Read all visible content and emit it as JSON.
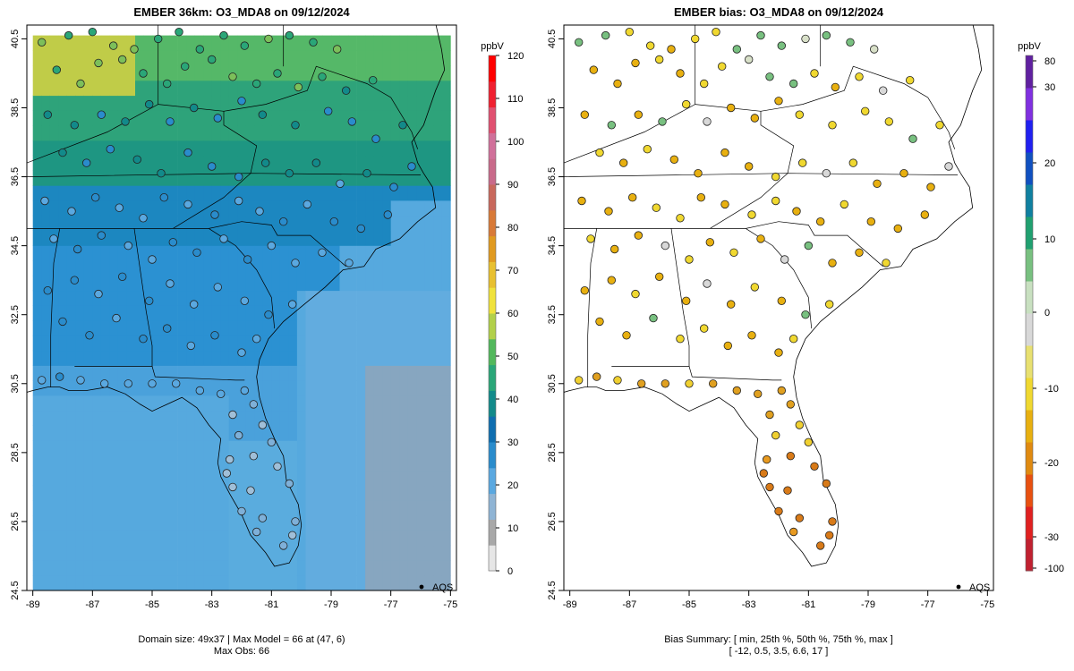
{
  "left": {
    "title": "EMBER 36km: O3_MDA8 on 09/12/2024",
    "unit": "ppbV",
    "legend_label": "AQS",
    "footer_line1": "Domain size: 49x37 | Max Model = 66 at (47, 6)",
    "footer_line2": "Max Obs: 66",
    "colorbar_ticks": [
      "0",
      "10",
      "20",
      "30",
      "40",
      "50",
      "60",
      "70",
      "80",
      "90",
      "100",
      "110",
      "120"
    ],
    "colorbar_colors": [
      "#e6e6e6",
      "#a8a8a8",
      "#8fb4d4",
      "#5aa8e0",
      "#2a8ccc",
      "#0f6eb0",
      "#128a8a",
      "#2aa678",
      "#52b85c",
      "#b2d04a",
      "#f0e23c",
      "#e8c030",
      "#e09a20",
      "#d87a38",
      "#c8685c",
      "#c86a8a",
      "#d0709a",
      "#e05070",
      "#f02030",
      "#ff0000"
    ]
  },
  "right": {
    "title": "EMBER bias: O3_MDA8 on 09/12/2024",
    "unit": "ppbV",
    "legend_label": "AQS",
    "footer_line1": "Bias Summary: [ min, 25th %, 50th %, 75th %, max ]",
    "footer_line2": "[ -12,   0.5,   3.5,   6.6,   17 ]",
    "colorbar_ticks": [
      "80",
      "30",
      "20",
      "10",
      "0",
      "-10",
      "-20",
      "-30",
      "-100"
    ],
    "colorbar_colors": [
      "#c02030",
      "#e02020",
      "#e85010",
      "#e08a10",
      "#e8b010",
      "#f0d830",
      "#e8e070",
      "#d8d8d8",
      "#c8e0c0",
      "#78c080",
      "#20a070",
      "#1080a0",
      "#1050c0",
      "#2020f0",
      "#8030e0",
      "#6020a0"
    ]
  },
  "map": {
    "x_ticks": [
      "-89",
      "-87",
      "-85",
      "-83",
      "-81",
      "-79",
      "-77",
      "-75"
    ],
    "y_ticks": [
      "24.5",
      "26.5",
      "28.5",
      "30.5",
      "32.5",
      "34.5",
      "36.5",
      "38.5",
      "40.5"
    ],
    "xlim": [
      -89.2,
      -74.8
    ],
    "ylim": [
      24.5,
      40.9
    ]
  }
}
